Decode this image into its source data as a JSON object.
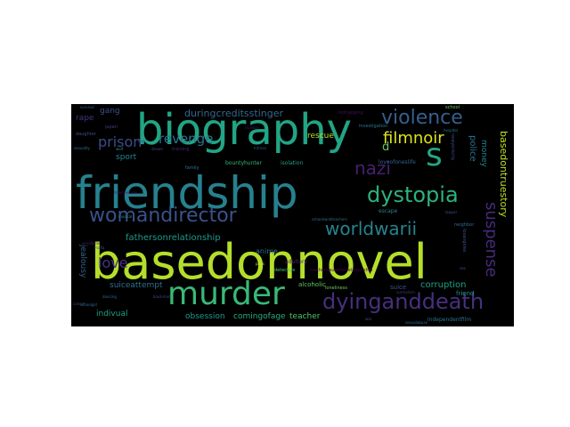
{
  "wordcloud": {
    "background": "#000000",
    "words": [
      {
        "text": "basedonnovel",
        "color": "#b5de2b"
      },
      {
        "text": "friendship",
        "color": "#26818e"
      },
      {
        "text": "biography",
        "color": "#21a585"
      },
      {
        "text": "murder",
        "color": "#38b977"
      },
      {
        "text": "s",
        "color": "#22a884"
      },
      {
        "text": "womandirector",
        "color": "#3b518b"
      },
      {
        "text": "violence",
        "color": "#355f8d"
      },
      {
        "text": "dystopia",
        "color": "#2db27d"
      },
      {
        "text": "dyinganddeath",
        "color": "#46307e"
      },
      {
        "text": "nazi",
        "color": "#481f70"
      },
      {
        "text": "suspense",
        "color": "#472a7a"
      },
      {
        "text": "worldwarii",
        "color": "#25848e"
      },
      {
        "text": "filmnoir",
        "color": "#dde318"
      },
      {
        "text": "prison",
        "color": "#3e4a89"
      },
      {
        "text": "revenge",
        "color": "#2c728e"
      },
      {
        "text": "love",
        "color": "#463480"
      },
      {
        "text": "duringcreditsstinger",
        "color": "#31688e"
      },
      {
        "text": "fathersonrelationship",
        "color": "#1f9a8a"
      },
      {
        "text": "basedontruestory",
        "color": "#c2df23"
      },
      {
        "text": "corruption",
        "color": "#1fa088"
      },
      {
        "text": "d",
        "color": "#60ca60"
      },
      {
        "text": "suiceattempt",
        "color": "#2d718e"
      },
      {
        "text": "obsession",
        "color": "#1e9c89"
      },
      {
        "text": "comingofage",
        "color": "#27ad81"
      },
      {
        "text": "teacher",
        "color": "#52c569"
      },
      {
        "text": "indivual",
        "color": "#20a386"
      },
      {
        "text": "police",
        "color": "#2a768e"
      },
      {
        "text": "money",
        "color": "#26828e"
      },
      {
        "text": "rescue",
        "color": "#b5de2b"
      },
      {
        "text": "jealousy",
        "color": "#33638d"
      },
      {
        "text": "sport",
        "color": "#25838e"
      },
      {
        "text": "gang",
        "color": "#3b528b"
      },
      {
        "text": "rape",
        "color": "#453581"
      },
      {
        "text": "anime",
        "color": "#2c738e"
      },
      {
        "text": "suice",
        "color": "#38588c"
      },
      {
        "text": "alcoholic",
        "color": "#5ec962"
      },
      {
        "text": "friend",
        "color": "#21918c"
      },
      {
        "text": "bountyhunter",
        "color": "#35b779"
      },
      {
        "text": "isolation",
        "color": "#1fa187"
      },
      {
        "text": "loveofoneslife",
        "color": "#34618d"
      },
      {
        "text": "escape",
        "color": "#25848e"
      },
      {
        "text": "independentfilm",
        "color": "#2b758e"
      },
      {
        "text": "adultery",
        "color": "#482475"
      },
      {
        "text": "detective",
        "color": "#4ac16d"
      },
      {
        "text": "kidnapping",
        "color": "#470e61"
      },
      {
        "text": "investigation",
        "color": "#2a788e"
      },
      {
        "text": "motherdaughterrelationship",
        "color": "#440154"
      },
      {
        "text": "japan",
        "color": "#443983"
      },
      {
        "text": "daughter",
        "color": "#3c4f8a"
      },
      {
        "text": "loneliness",
        "color": "#6ccd5a"
      },
      {
        "text": "neighbor",
        "color": "#2e6e8e"
      },
      {
        "text": "schoolsandteachers",
        "color": "#2e6f8e"
      },
      {
        "text": "losangeles",
        "color": "#3b528b"
      },
      {
        "text": "newyorkcity",
        "color": "#3e4989"
      },
      {
        "text": "school",
        "color": "#6ece58"
      },
      {
        "text": "training",
        "color": "#482173"
      },
      {
        "text": "family",
        "color": "#2a788e"
      },
      {
        "text": "musical",
        "color": "#1f978b"
      },
      {
        "text": "dream",
        "color": "#3f4788"
      },
      {
        "text": "wolf",
        "color": "#1f958b"
      },
      {
        "text": "hitman",
        "color": "#39568c"
      },
      {
        "text": "lawyer",
        "color": "#3b528b"
      },
      {
        "text": "paris",
        "color": "#d0e11c"
      },
      {
        "text": "sexuality",
        "color": "#2c728e"
      },
      {
        "text": "civilwar",
        "color": "#481769"
      },
      {
        "text": "transvestism",
        "color": "#471063"
      },
      {
        "text": "survival",
        "color": "#31688e"
      },
      {
        "text": "war",
        "color": "#3a548c"
      },
      {
        "text": "riot",
        "color": "#31b57b"
      },
      {
        "text": "sexualabuse",
        "color": "#2e6d8e"
      },
      {
        "text": "serialkiller",
        "color": "#481d6f"
      },
      {
        "text": "surrealism",
        "color": "#443a83"
      },
      {
        "text": "mafia",
        "color": "#3b528b"
      },
      {
        "text": "sex",
        "color": "#3d4d8a"
      },
      {
        "text": "dancing",
        "color": "#2d708e"
      },
      {
        "text": "blackmail",
        "color": "#3f4889"
      },
      {
        "text": "cancer",
        "color": "#414487"
      },
      {
        "text": "hospital",
        "color": "#29798e"
      },
      {
        "text": "schoolgirl",
        "color": "#2f6b8e"
      },
      {
        "text": "dog",
        "color": "#38598c"
      }
    ]
  }
}
